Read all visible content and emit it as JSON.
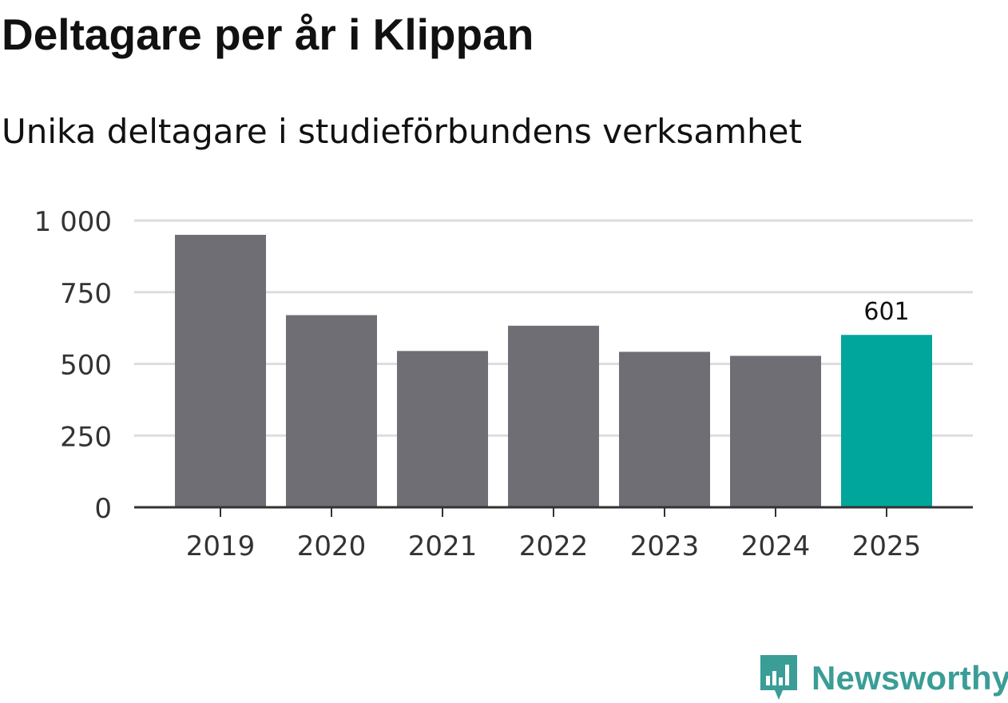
{
  "title": "Deltagare per år i Klippan",
  "subtitle": "Unika deltagare i studieförbundens verksamhet",
  "brand": {
    "name": "Newsworthy",
    "icon": "newsworthy-logo-icon",
    "color": "#3a9d96"
  },
  "chart_data": {
    "type": "bar",
    "title": "Deltagare per år i Klippan",
    "subtitle": "Unika deltagare i studieförbundens verksamhet",
    "categories": [
      "2019",
      "2020",
      "2021",
      "2022",
      "2023",
      "2024",
      "2025"
    ],
    "values": [
      950,
      670,
      545,
      633,
      542,
      528,
      601
    ],
    "highlight_index": 6,
    "data_labels": [
      {
        "index": 6,
        "text": "601"
      }
    ],
    "colors": {
      "bar": "#6f6e74",
      "highlight": "#00a59b",
      "grid": "#dddddd",
      "axis": "#333333"
    },
    "ylim": [
      0,
      1000
    ],
    "yticks": [
      0,
      250,
      500,
      750,
      1000
    ],
    "ytick_labels": [
      "0",
      "250",
      "500",
      "750",
      "1 000"
    ],
    "xlabel": "",
    "ylabel": "",
    "grid": true
  }
}
